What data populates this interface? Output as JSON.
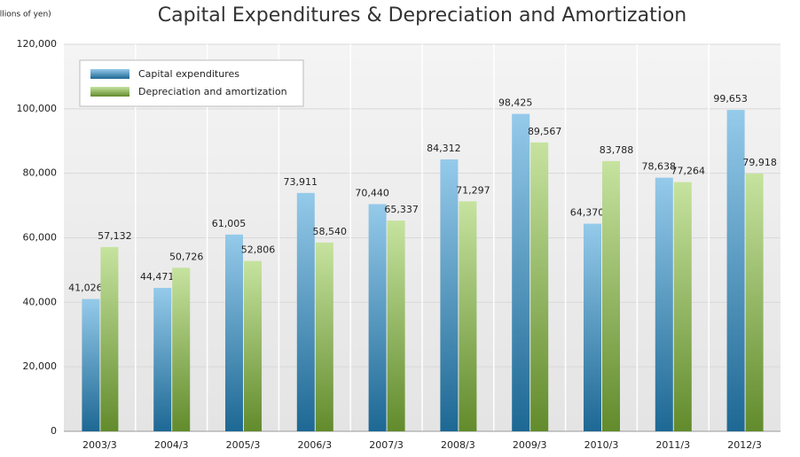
{
  "chart_data": {
    "type": "bar",
    "title": "Capital Expenditures & Depreciation and Amortization",
    "y_label": "(Millions of yen)",
    "categories": [
      "2003/3",
      "2004/3",
      "2005/3",
      "2006/3",
      "2007/3",
      "2008/3",
      "2009/3",
      "2010/3",
      "2011/3",
      "2012/3"
    ],
    "series": [
      {
        "name": "Capital expenditures",
        "color": "#2a95d4",
        "values": [
          41026,
          44471,
          61005,
          73911,
          70440,
          84312,
          98425,
          64370,
          78638,
          99653
        ],
        "value_labels": [
          "41,026",
          "44,471",
          "61,005",
          "73,911",
          "70,440",
          "84,312",
          "98,425",
          "64,370",
          "78,638",
          "99,653"
        ]
      },
      {
        "name": "Depreciation and amortization",
        "color": "#8cc63f",
        "values": [
          57132,
          50726,
          52806,
          58540,
          65337,
          71297,
          89567,
          83788,
          77264,
          79918
        ],
        "value_labels": [
          "57,132",
          "50,726",
          "52,806",
          "58,540",
          "65,337",
          "71,297",
          "89,567",
          "83,788",
          "77,264",
          "79,918"
        ]
      }
    ],
    "ylim": [
      0,
      120000
    ],
    "yticks": [
      0,
      {
        "value": 20000,
        "label": "20,000"
      },
      {
        "value": 40000,
        "label": "40,000"
      },
      {
        "value": 60000,
        "label": "60,000"
      },
      {
        "value": 80000,
        "label": "80,000"
      },
      {
        "value": 100000,
        "label": "100,000"
      },
      {
        "value": 120000,
        "label": "120,000"
      }
    ],
    "legend": "upper left"
  }
}
